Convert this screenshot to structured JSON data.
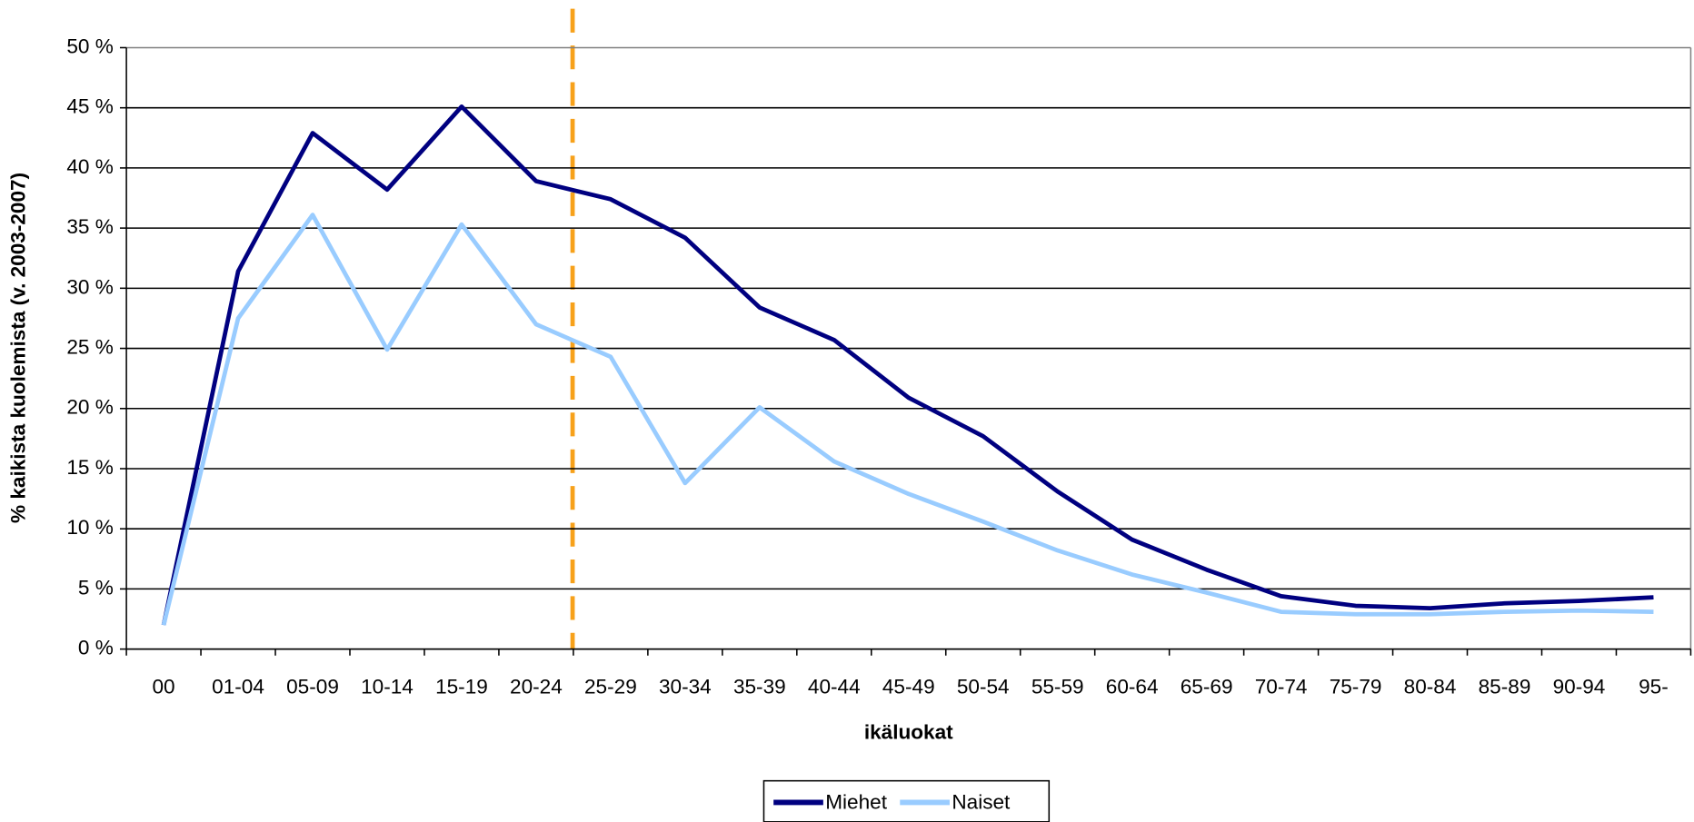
{
  "chart_data": {
    "type": "line",
    "x_label": "ikäluokat",
    "y_label": "% kaikista kuolemista (v. 2003-2007)",
    "categories": [
      "00",
      "01-04",
      "05-09",
      "10-14",
      "15-19",
      "20-24",
      "25-29",
      "30-34",
      "35-39",
      "40-44",
      "45-49",
      "50-54",
      "55-59",
      "60-64",
      "65-69",
      "70-74",
      "75-79",
      "80-84",
      "85-89",
      "90-94",
      "95-"
    ],
    "series": [
      {
        "name": "Miehet",
        "color": "#000080",
        "values": [
          2.0,
          31.4,
          42.9,
          38.2,
          45.1,
          38.9,
          37.4,
          34.2,
          28.4,
          25.7,
          20.9,
          17.7,
          13.1,
          9.1,
          6.6,
          4.4,
          3.6,
          3.4,
          3.8,
          4.0,
          4.3
        ]
      },
      {
        "name": "Naiset",
        "color": "#99ccff",
        "values": [
          2.0,
          27.5,
          36.1,
          24.9,
          35.3,
          27.0,
          24.3,
          13.8,
          20.1,
          15.6,
          12.9,
          10.6,
          8.2,
          6.2,
          4.7,
          3.1,
          2.9,
          2.9,
          3.1,
          3.2,
          3.1
        ]
      }
    ],
    "ylim": [
      0,
      50
    ],
    "yticks": [
      {
        "value": 0,
        "label": "0 %"
      },
      {
        "value": 5,
        "label": "5 %"
      },
      {
        "value": 10,
        "label": "10 %"
      },
      {
        "value": 15,
        "label": "15 %"
      },
      {
        "value": 20,
        "label": "20 %"
      },
      {
        "value": 25,
        "label": "25 %"
      },
      {
        "value": 30,
        "label": "30 %"
      },
      {
        "value": 35,
        "label": "35 %"
      },
      {
        "value": 40,
        "label": "40 %"
      },
      {
        "value": 45,
        "label": "45 %"
      },
      {
        "value": 50,
        "label": "50 %"
      }
    ],
    "grid": true,
    "legend": "bottom"
  }
}
